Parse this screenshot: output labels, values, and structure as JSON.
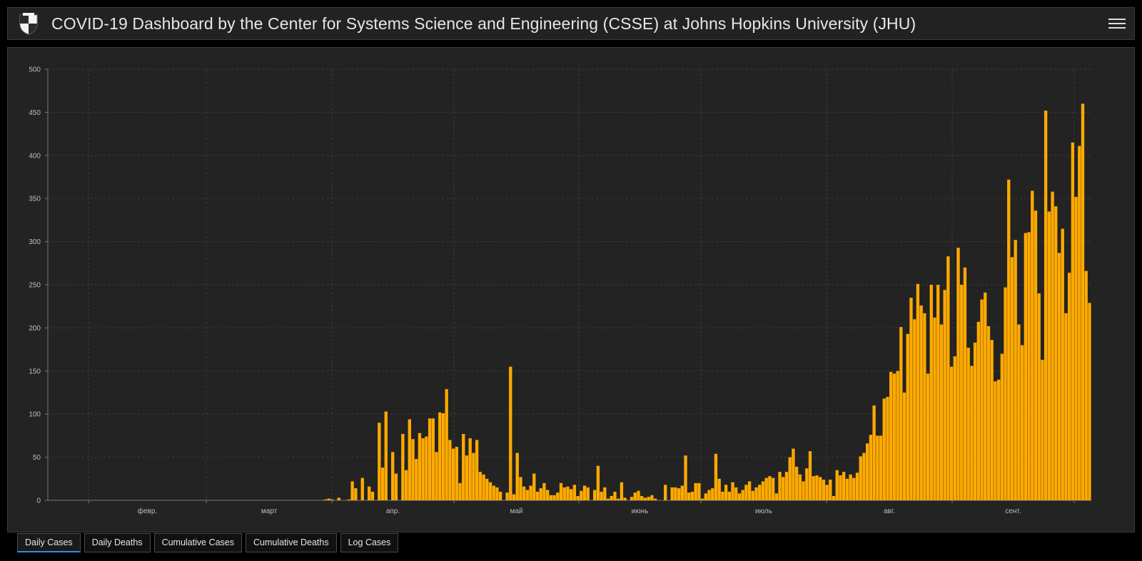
{
  "header": {
    "title": "COVID-19 Dashboard by the Center for Systems Science and Engineering (CSSE) at Johns Hopkins University (JHU)",
    "logo_icon": "jhu-shield-icon",
    "menu_icon": "hamburger-menu-icon"
  },
  "tabs": [
    {
      "label": "Daily Cases",
      "active": true
    },
    {
      "label": "Daily Deaths",
      "active": false
    },
    {
      "label": "Cumulative Cases",
      "active": false
    },
    {
      "label": "Cumulative Deaths",
      "active": false
    },
    {
      "label": "Log Cases",
      "active": false
    }
  ],
  "colors": {
    "bar": "#ffaa00",
    "background": "#232323",
    "accent": "#2e8fe6"
  },
  "chart_data": {
    "type": "bar",
    "ylim": [
      0,
      500
    ],
    "y_ticks": [
      0,
      50,
      100,
      150,
      200,
      250,
      300,
      350,
      400,
      450,
      500
    ],
    "x_tick_labels": [
      "февр.",
      "март",
      "апр.",
      "май",
      "июнь",
      "июль",
      "авг.",
      "сент."
    ],
    "grid": true,
    "legend": "none",
    "series": [
      {
        "values": [
          0,
          0,
          0,
          0,
          0,
          0,
          0,
          0,
          0,
          0,
          0,
          0,
          0,
          0,
          0,
          0,
          0,
          0,
          0,
          0,
          0,
          0,
          0,
          0,
          0,
          0,
          0,
          0,
          0,
          0,
          0,
          0,
          0,
          0,
          0,
          0,
          0,
          0,
          0,
          0,
          0,
          0,
          0,
          0,
          0,
          0,
          0,
          0,
          0,
          0,
          0,
          0,
          0,
          0,
          0,
          0,
          0,
          0,
          0,
          0,
          0,
          0,
          0,
          0,
          0,
          0,
          0,
          0,
          0,
          0,
          0,
          0,
          0,
          0,
          0,
          0,
          0,
          0,
          0,
          0,
          0,
          0,
          1,
          2,
          1,
          0,
          3,
          0,
          0,
          1,
          22,
          14,
          0,
          26,
          0,
          16,
          10,
          0,
          90,
          38,
          103,
          0,
          56,
          31,
          0,
          77,
          35,
          94,
          71,
          48,
          78,
          72,
          74,
          95,
          95,
          56,
          102,
          101,
          129,
          70,
          60,
          62,
          20,
          77,
          52,
          72,
          55,
          70,
          33,
          30,
          25,
          21,
          17,
          15,
          10,
          0,
          9,
          155,
          7,
          55,
          27,
          16,
          12,
          17,
          31,
          10,
          14,
          20,
          12,
          6,
          6,
          9,
          20,
          15,
          16,
          13,
          18,
          5,
          11,
          17,
          15,
          0,
          12,
          40,
          10,
          15,
          2,
          5,
          10,
          2,
          21,
          3,
          0,
          4,
          9,
          11,
          5,
          3,
          4,
          6,
          2,
          0,
          0,
          18,
          0,
          15,
          15,
          14,
          17,
          52,
          9,
          10,
          20,
          20,
          2,
          8,
          12,
          14,
          54,
          25,
          10,
          18,
          10,
          21,
          15,
          8,
          12,
          18,
          22,
          11,
          15,
          18,
          22,
          26,
          28,
          26,
          8,
          33,
          27,
          33,
          50,
          60,
          39,
          30,
          22,
          37,
          57,
          28,
          29,
          27,
          24,
          18,
          24,
          5,
          35,
          29,
          33,
          25,
          30,
          26,
          32,
          51,
          55,
          66,
          76,
          110,
          75,
          75,
          118,
          120,
          149,
          147,
          150,
          201,
          125,
          193,
          235,
          210,
          251,
          226,
          217,
          147,
          250,
          212,
          250,
          204,
          244,
          283,
          155,
          167,
          293,
          250,
          270,
          177,
          156,
          183,
          207,
          233,
          241,
          202,
          186,
          138,
          140,
          170,
          247,
          372,
          282,
          302,
          204,
          180,
          310,
          311,
          359,
          336,
          240,
          163,
          452,
          335,
          358,
          341,
          287,
          315,
          217,
          264,
          415,
          352,
          411,
          460,
          266,
          229
        ]
      }
    ]
  }
}
